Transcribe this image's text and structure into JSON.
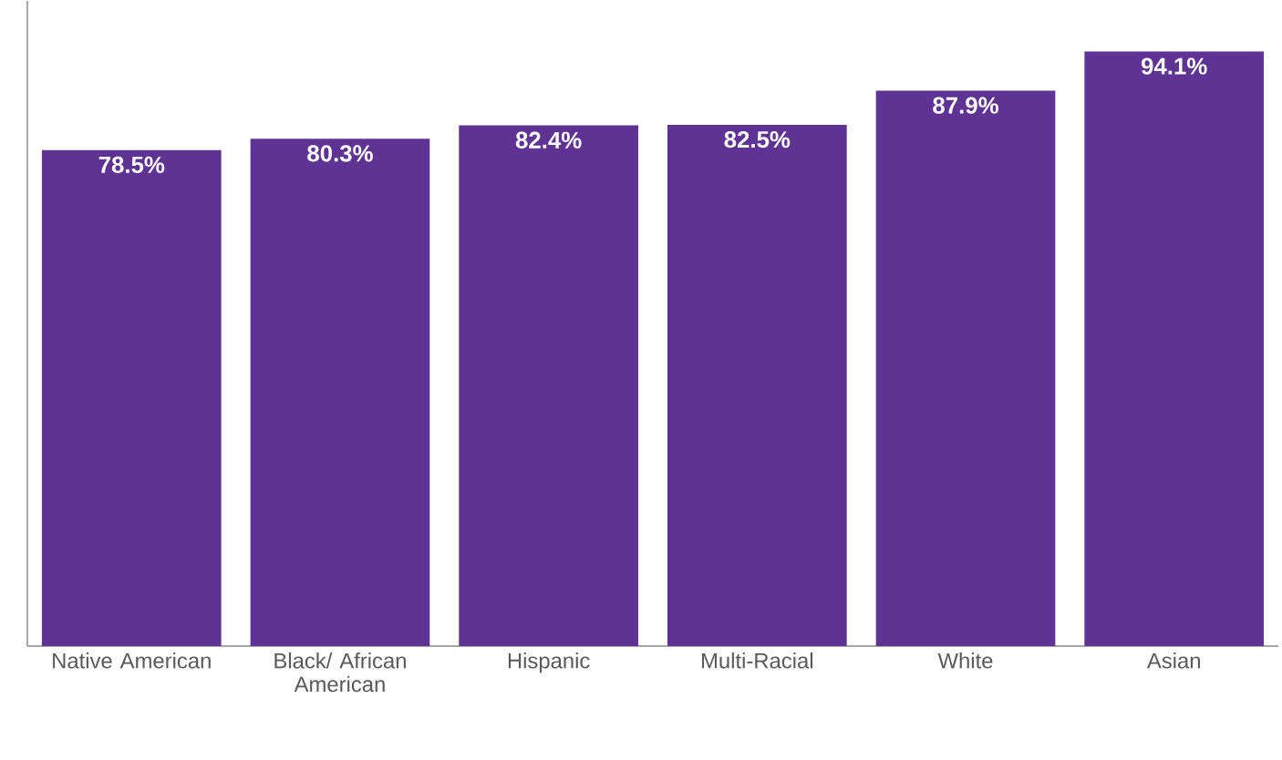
{
  "chart_data": {
    "type": "bar",
    "categories": [
      "Native American",
      "Black/ African American",
      "Hispanic",
      "Multi-Racial",
      "White",
      "Asian"
    ],
    "values": [
      78.5,
      80.3,
      82.4,
      82.5,
      87.9,
      94.1
    ],
    "value_labels": [
      "78.5%",
      "80.3%",
      "82.4%",
      "82.5%",
      "87.9%",
      "94.1%"
    ],
    "color": "#5f3393",
    "grid": false
  }
}
